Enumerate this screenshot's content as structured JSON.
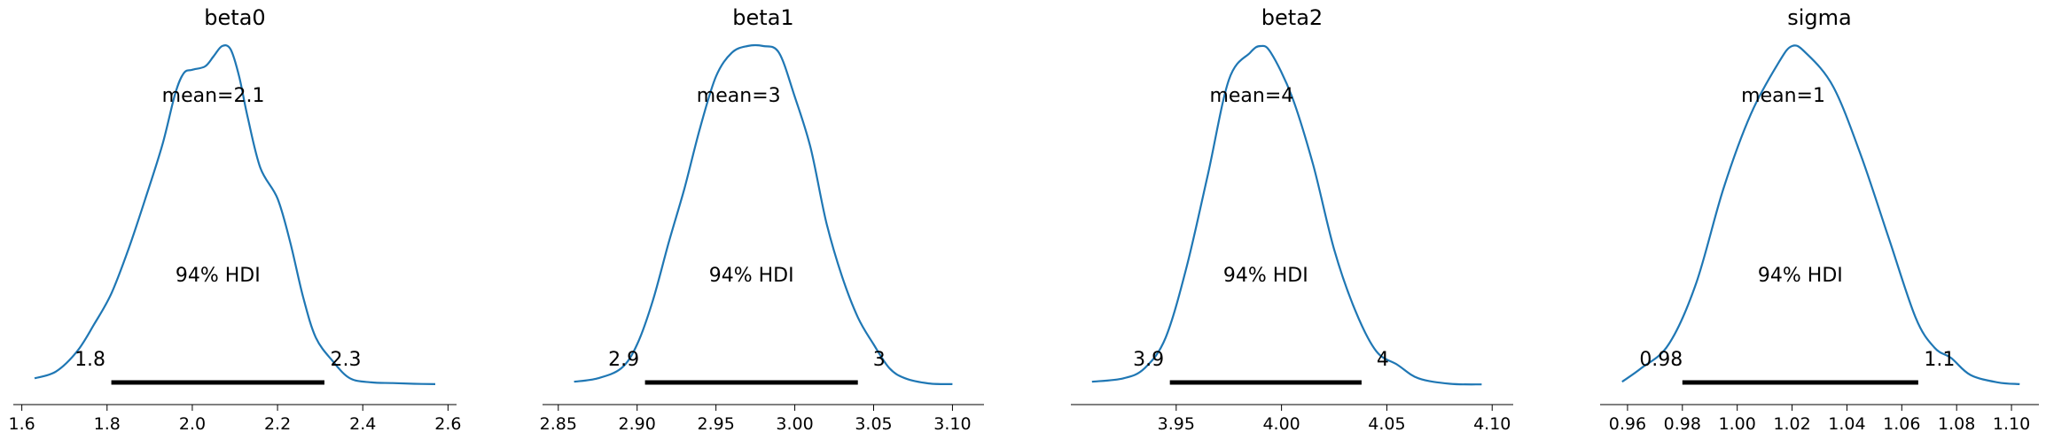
{
  "chart_data": [
    {
      "type": "line",
      "title": "beta0",
      "mean_label": "mean=2.1",
      "hdi_label": "94% HDI",
      "hdi": [
        1.81,
        2.31
      ],
      "hdi_low_label": "1.8",
      "hdi_high_label": "2.3",
      "xlim": [
        1.58,
        2.62
      ],
      "ticks": [
        1.6,
        1.8,
        2.0,
        2.2,
        2.4,
        2.6
      ],
      "tick_labels": [
        "1.6",
        "1.8",
        "2.0",
        "2.2",
        "2.4",
        "2.6"
      ],
      "x": [
        1.63,
        1.68,
        1.73,
        1.77,
        1.81,
        1.85,
        1.89,
        1.93,
        1.96,
        1.98,
        2.0,
        2.03,
        2.05,
        2.07,
        2.09,
        2.11,
        2.13,
        2.16,
        2.2,
        2.23,
        2.26,
        2.29,
        2.33,
        2.37,
        2.42,
        2.47,
        2.52,
        2.57
      ],
      "y": [
        0.02,
        0.04,
        0.1,
        0.18,
        0.27,
        0.4,
        0.55,
        0.71,
        0.86,
        0.92,
        0.93,
        0.94,
        0.97,
        1.0,
        0.99,
        0.91,
        0.79,
        0.64,
        0.55,
        0.42,
        0.26,
        0.14,
        0.07,
        0.02,
        0.008,
        0.006,
        0.004,
        0.003
      ]
    },
    {
      "type": "line",
      "title": "beta1",
      "mean_label": "mean=3",
      "hdi_label": "94% HDI",
      "hdi": [
        2.905,
        3.04
      ],
      "hdi_low_label": "2.9",
      "hdi_high_label": "3",
      "xlim": [
        2.84,
        3.12
      ],
      "ticks": [
        2.85,
        2.9,
        2.95,
        3.0,
        3.05,
        3.1
      ],
      "tick_labels": [
        "2.85",
        "2.90",
        "2.95",
        "3.00",
        "3.05",
        "3.10"
      ],
      "x": [
        2.86,
        2.875,
        2.89,
        2.9,
        2.91,
        2.92,
        2.93,
        2.94,
        2.95,
        2.96,
        2.97,
        2.98,
        2.99,
        3.0,
        3.01,
        3.02,
        3.03,
        3.04,
        3.05,
        3.06,
        3.07,
        3.085,
        3.1
      ],
      "y": [
        0.01,
        0.02,
        0.05,
        0.12,
        0.25,
        0.42,
        0.58,
        0.76,
        0.91,
        0.98,
        1.0,
        1.0,
        0.98,
        0.85,
        0.7,
        0.48,
        0.32,
        0.2,
        0.12,
        0.05,
        0.02,
        0.005,
        0.003
      ]
    },
    {
      "type": "line",
      "title": "beta2",
      "mean_label": "mean=4",
      "hdi_label": "94% HDI",
      "hdi": [
        3.947,
        4.038
      ],
      "hdi_low_label": "3.9",
      "hdi_high_label": "4",
      "xlim": [
        3.9,
        4.11
      ],
      "ticks": [
        3.95,
        4.0,
        4.05,
        4.1
      ],
      "tick_labels": [
        "3.95",
        "4.00",
        "4.05",
        "4.10"
      ],
      "x": [
        3.91,
        3.925,
        3.935,
        3.945,
        3.955,
        3.965,
        3.975,
        3.985,
        3.99,
        3.995,
        4.005,
        4.015,
        4.025,
        4.035,
        4.045,
        4.055,
        4.065,
        4.08,
        4.095
      ],
      "y": [
        0.01,
        0.02,
        0.05,
        0.14,
        0.35,
        0.62,
        0.9,
        0.98,
        1.0,
        0.98,
        0.85,
        0.65,
        0.4,
        0.22,
        0.1,
        0.06,
        0.02,
        0.004,
        0.002
      ]
    },
    {
      "type": "line",
      "title": "sigma",
      "mean_label": "mean=1",
      "hdi_label": "94% HDI",
      "hdi": [
        0.98,
        1.066
      ],
      "hdi_low_label": "0.98",
      "hdi_high_label": "1.1",
      "xlim": [
        0.95,
        1.11
      ],
      "ticks": [
        0.96,
        0.98,
        1.0,
        1.02,
        1.04,
        1.06,
        1.08,
        1.1
      ],
      "tick_labels": [
        "0.96",
        "0.98",
        "1.00",
        "1.02",
        "1.04",
        "1.06",
        "1.08",
        "1.10"
      ],
      "x": [
        0.958,
        0.965,
        0.975,
        0.985,
        0.995,
        1.005,
        1.015,
        1.02,
        1.025,
        1.035,
        1.045,
        1.055,
        1.065,
        1.072,
        1.078,
        1.085,
        1.095,
        1.103
      ],
      "y": [
        0.01,
        0.05,
        0.12,
        0.3,
        0.58,
        0.8,
        0.95,
        1.0,
        0.98,
        0.88,
        0.68,
        0.44,
        0.2,
        0.11,
        0.08,
        0.03,
        0.008,
        0.003
      ]
    }
  ]
}
